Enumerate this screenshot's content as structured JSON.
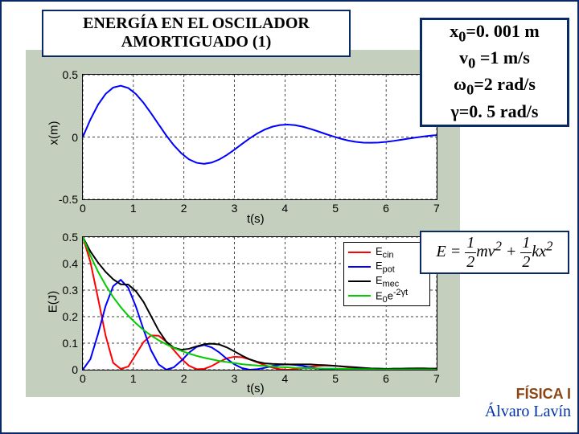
{
  "title": {
    "line1": "ENERGÍA EN EL OSCILADOR",
    "line2": "AMORTIGUADO (1)"
  },
  "params": {
    "l1_html": "x<sub>0</sub>=0. 001 m",
    "l2_html": "v<sub>0</sub> =1 m/s",
    "l3_html": "ω<sub>0</sub>=2 rad/s",
    "l4_html": "γ=0. 5 rad/s"
  },
  "equation_html": "<i>E</i> = <span style='display:inline-block;vertical-align:middle'><span style='border-bottom:1px solid #000;display:block;text-align:center;padding:0 2px'>1</span><span style='display:block;text-align:center'>2</span></span><i>mv</i><sup>2</sup> + <span style='display:inline-block;vertical-align:middle'><span style='border-bottom:1px solid #000;display:block;text-align:center;padding:0 2px'>1</span><span style='display:block;text-align:center'>2</span></span><i>kx</i><sup>2</sup>",
  "brand": {
    "line1": "FÍSICA I",
    "line2": "Álvaro Lavín"
  },
  "top_chart": {
    "ylabel": "x(m)",
    "xlabel": "t(s)",
    "xlim": [
      0,
      7
    ],
    "ylim": [
      -0.5,
      0.5
    ],
    "xticks": [
      0,
      1,
      2,
      3,
      4,
      5,
      6,
      7
    ],
    "yticks": [
      -0.5,
      0,
      0.5
    ],
    "line_color": "#0000ff",
    "line_width": 2,
    "grid_color": "#000",
    "grid_dash": "3,3",
    "background": "#ffffff",
    "x_values": [
      0,
      0.15,
      0.3,
      0.45,
      0.6,
      0.75,
      0.9,
      1.05,
      1.2,
      1.35,
      1.5,
      1.65,
      1.8,
      1.95,
      2.1,
      2.25,
      2.4,
      2.55,
      2.7,
      2.85,
      3.0,
      3.15,
      3.3,
      3.45,
      3.6,
      3.75,
      3.9,
      4.05,
      4.2,
      4.35,
      4.5,
      4.65,
      4.8,
      4.95,
      5.1,
      5.25,
      5.4,
      5.55,
      5.7,
      5.85,
      6.0,
      6.15,
      6.3,
      6.45,
      6.6,
      6.75,
      6.9,
      7.0
    ],
    "y_values": [
      0.001,
      0.141,
      0.259,
      0.346,
      0.397,
      0.412,
      0.393,
      0.345,
      0.275,
      0.191,
      0.101,
      0.013,
      -0.066,
      -0.131,
      -0.179,
      -0.207,
      -0.215,
      -0.205,
      -0.18,
      -0.144,
      -0.101,
      -0.055,
      -0.011,
      0.028,
      0.06,
      0.083,
      0.096,
      0.1,
      0.095,
      0.083,
      0.066,
      0.046,
      0.025,
      0.005,
      -0.013,
      -0.028,
      -0.039,
      -0.045,
      -0.046,
      -0.044,
      -0.039,
      -0.031,
      -0.022,
      -0.012,
      -0.003,
      0.005,
      0.012,
      0.015
    ]
  },
  "bottom_chart": {
    "ylabel": "E(J)",
    "xlabel": "t(s)",
    "xlim": [
      0,
      7
    ],
    "ylim": [
      0,
      0.5
    ],
    "xticks": [
      0,
      1,
      2,
      3,
      4,
      5,
      6,
      7
    ],
    "yticks": [
      0,
      0.1,
      0.2,
      0.3,
      0.4,
      0.5
    ],
    "grid_color": "#000",
    "grid_dash": "3,3",
    "background": "#ffffff",
    "series": [
      {
        "name": "Ecin",
        "color": "#ff0000",
        "width": 2,
        "y": [
          0.5,
          0.406,
          0.27,
          0.129,
          0.026,
          0.003,
          0.012,
          0.058,
          0.104,
          0.129,
          0.128,
          0.106,
          0.074,
          0.041,
          0.015,
          0.002,
          0.003,
          0.014,
          0.03,
          0.043,
          0.049,
          0.047,
          0.039,
          0.028,
          0.017,
          0.008,
          0.002,
          0.0,
          0.002,
          0.006,
          0.011,
          0.014,
          0.016,
          0.015,
          0.013,
          0.009,
          0.006,
          0.003,
          0.001,
          0.0,
          0.0,
          0.002,
          0.003,
          0.004,
          0.005,
          0.005,
          0.004,
          0.004
        ]
      },
      {
        "name": "Epot",
        "color": "#0000ff",
        "width": 2,
        "y": [
          0.0,
          0.04,
          0.134,
          0.24,
          0.315,
          0.339,
          0.309,
          0.238,
          0.152,
          0.073,
          0.02,
          0.0,
          0.009,
          0.034,
          0.064,
          0.086,
          0.093,
          0.084,
          0.065,
          0.041,
          0.02,
          0.006,
          0.0,
          0.002,
          0.007,
          0.014,
          0.019,
          0.02,
          0.018,
          0.014,
          0.009,
          0.004,
          0.001,
          0.0,
          0.0,
          0.002,
          0.003,
          0.004,
          0.004,
          0.004,
          0.003,
          0.002,
          0.001,
          0.001,
          0.0,
          0.0,
          0.0,
          0.0
        ]
      },
      {
        "name": "Emec",
        "color": "#000000",
        "width": 2,
        "y": [
          0.5,
          0.446,
          0.404,
          0.369,
          0.341,
          0.322,
          0.321,
          0.296,
          0.256,
          0.202,
          0.148,
          0.106,
          0.083,
          0.075,
          0.079,
          0.088,
          0.096,
          0.098,
          0.095,
          0.084,
          0.069,
          0.053,
          0.039,
          0.03,
          0.024,
          0.022,
          0.021,
          0.02,
          0.02,
          0.02,
          0.02,
          0.018,
          0.017,
          0.015,
          0.013,
          0.011,
          0.009,
          0.007,
          0.005,
          0.004,
          0.003,
          0.004,
          0.004,
          0.005,
          0.005,
          0.005,
          0.004,
          0.004
        ]
      },
      {
        "name": "E0e-2gt",
        "color": "#00cc00",
        "width": 2,
        "y": [
          0.5,
          0.43,
          0.37,
          0.319,
          0.274,
          0.236,
          0.203,
          0.175,
          0.15,
          0.129,
          0.111,
          0.096,
          0.082,
          0.071,
          0.061,
          0.052,
          0.045,
          0.039,
          0.033,
          0.029,
          0.025,
          0.021,
          0.018,
          0.016,
          0.014,
          0.012,
          0.01,
          0.009,
          0.007,
          0.006,
          0.006,
          0.005,
          0.004,
          0.004,
          0.003,
          0.003,
          0.002,
          0.002,
          0.002,
          0.001,
          0.001,
          0.001,
          0.001,
          0.001,
          0.001,
          0.001,
          0.001,
          0.0
        ]
      }
    ],
    "legend": {
      "items": [
        {
          "label_html": "E<sub>cin</sub>",
          "color": "#ff0000"
        },
        {
          "label_html": "E<sub>pot</sub>",
          "color": "#0000ff"
        },
        {
          "label_html": "E<sub>mec</sub>",
          "color": "#000000"
        },
        {
          "label_html": "E<sub>0</sub>e<sup>-2γt</sup>",
          "color": "#00cc00"
        }
      ]
    }
  }
}
